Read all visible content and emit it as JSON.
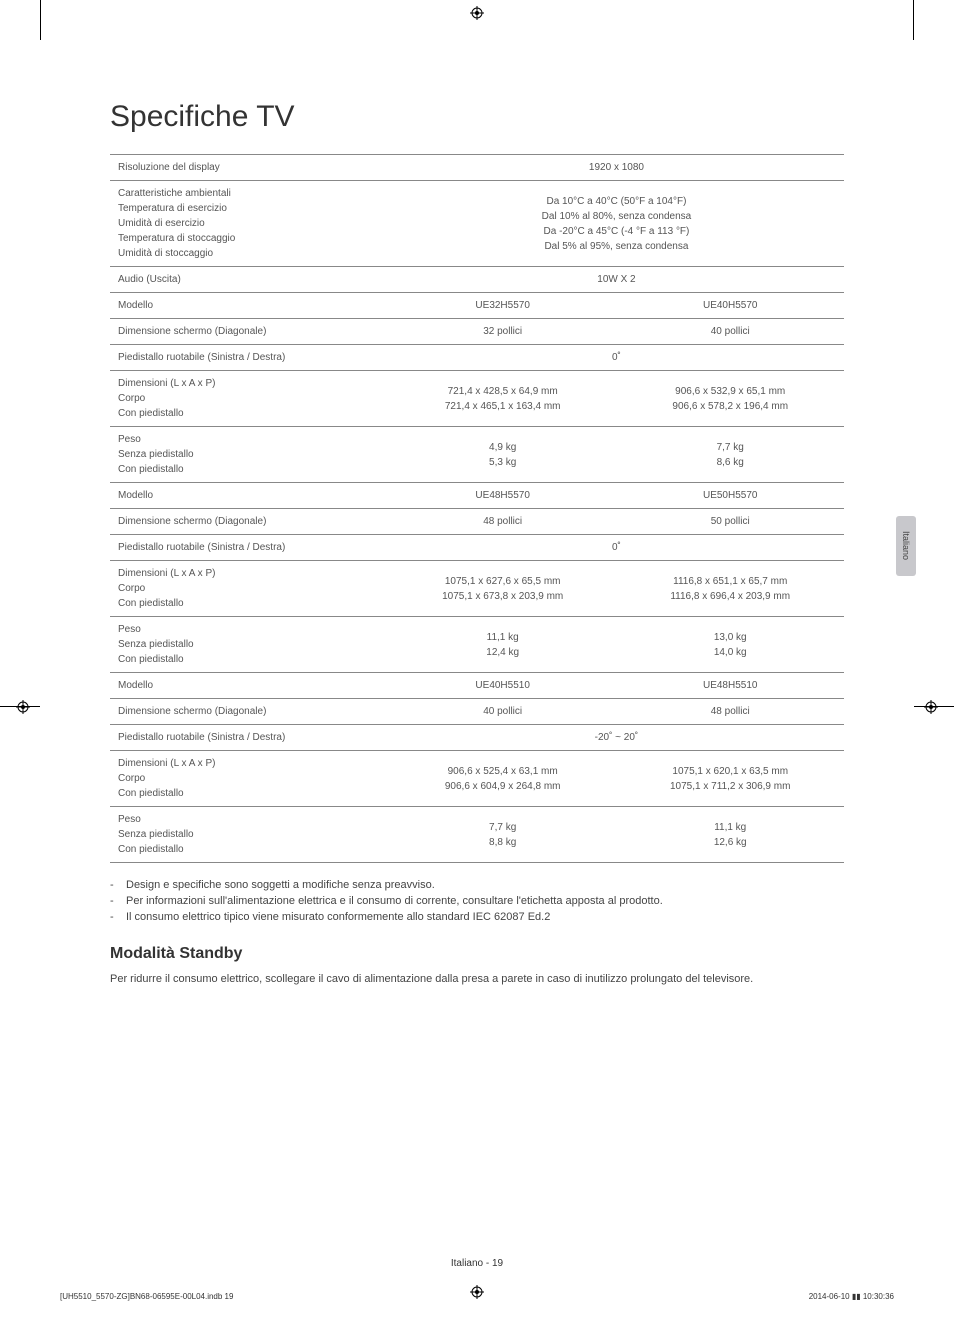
{
  "page": {
    "title": "Specifiche TV",
    "page_number": "Italiano - 19",
    "footer_left": "[UH5510_5570-ZG]BN68-06595E-00L04.indb   19",
    "footer_right": "2014-06-10   ▮▮ 10:30:36",
    "side_tab": "Italiano"
  },
  "table": {
    "rows": [
      {
        "label": "Risoluzione del display",
        "full": "1920 x 1080"
      },
      {
        "label": "Caratteristiche ambientali\nTemperatura di esercizio\nUmidità di esercizio\nTemperatura di stoccaggio\nUmidità di stoccaggio",
        "full": "Da 10°C a 40°C (50°F a 104°F)\nDal 10% al 80%, senza condensa\nDa -20°C a 45°C (-4 °F a 113 °F)\nDal 5% al 95%, senza condensa"
      },
      {
        "label": "Audio (Uscita)",
        "full": "10W X 2"
      },
      {
        "label": "Modello",
        "left": "UE32H5570",
        "right": "UE40H5570"
      },
      {
        "label": "Dimensione schermo (Diagonale)",
        "left": "32 pollici",
        "right": "40 pollici"
      },
      {
        "label": "Piedistallo ruotabile (Sinistra / Destra)",
        "full": "0˚"
      },
      {
        "label": "Dimensioni (L x A x P)\nCorpo\nCon piedistallo",
        "left": "721,4 x 428,5 x 64,9 mm\n721,4 x 465,1 x 163,4 mm",
        "right": "906,6 x 532,9 x 65,1 mm\n906,6 x 578,2 x 196,4 mm"
      },
      {
        "label": "Peso\nSenza piedistallo\nCon piedistallo",
        "left": "4,9 kg\n5,3 kg",
        "right": "7,7 kg\n8,6 kg"
      },
      {
        "label": "Modello",
        "left": "UE48H5570",
        "right": "UE50H5570"
      },
      {
        "label": "Dimensione schermo (Diagonale)",
        "left": "48 pollici",
        "right": "50 pollici"
      },
      {
        "label": "Piedistallo ruotabile (Sinistra / Destra)",
        "full": "0˚"
      },
      {
        "label": "Dimensioni (L x A x P)\nCorpo\nCon piedistallo",
        "left": "1075,1 x 627,6 x 65,5 mm\n1075,1 x 673,8 x 203,9 mm",
        "right": "1116,8 x 651,1 x 65,7 mm\n1116,8 x 696,4 x 203,9 mm"
      },
      {
        "label": "Peso\nSenza piedistallo\nCon piedistallo",
        "left": "11,1 kg\n12,4 kg",
        "right": "13,0 kg\n14,0 kg"
      },
      {
        "label": "Modello",
        "left": "UE40H5510",
        "right": "UE48H5510"
      },
      {
        "label": "Dimensione schermo (Diagonale)",
        "left": "40 pollici",
        "right": "48 pollici"
      },
      {
        "label": "Piedistallo ruotabile (Sinistra / Destra)",
        "full": "-20˚ ~ 20˚"
      },
      {
        "label": "Dimensioni (L x A x P)\nCorpo\nCon piedistallo",
        "left": "906,6 x 525,4 x 63,1 mm\n906,6 x 604,9 x 264,8 mm",
        "right": "1075,1 x 620,1 x 63,5 mm\n1075,1 x 711,2 x 306,9 mm"
      },
      {
        "label": "Peso\nSenza piedistallo\nCon piedistallo",
        "left": "7,7 kg\n8,8 kg",
        "right": "11,1 kg\n12,6 kg"
      }
    ]
  },
  "notes": [
    "Design e specifiche sono soggetti a modifiche senza preavviso.",
    "Per informazioni sull'alimentazione elettrica e il consumo di corrente, consultare l'etichetta apposta al prodotto.",
    "Il consumo elettrico tipico viene misurato conformemente allo standard IEC 62087 Ed.2"
  ],
  "standby": {
    "heading": "Modalità Standby",
    "text": "Per ridurre il consumo elettrico, scollegare il cavo di alimentazione dalla presa a parete in caso di inutilizzo prolungato del televisore."
  }
}
